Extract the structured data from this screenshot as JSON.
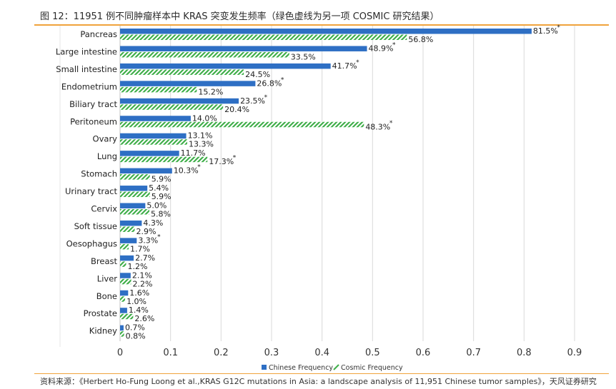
{
  "figure": {
    "title": "图 12：11951 例不同肿瘤样本中 KRAS 突变发生频率（绿色虚线为另一项 COSMIC 研究结果）",
    "source": "资料来源：《Herbert Ho-Fung Loong et al.,KRAS G12C mutations in Asia: a landscape analysis of 11,951 Chinese tumor samples》，天风证券研究"
  },
  "colors": {
    "chinese": "#2e6fc4",
    "cosmic": "#3fae49",
    "grid": "#d9d9d9"
  },
  "chart_data": {
    "type": "bar",
    "orientation": "horizontal",
    "categories": [
      "Pancreas",
      "Large intestine",
      "Small intestine",
      "Endometrium",
      "Biliary tract",
      "Peritoneum",
      "Ovary",
      "Lung",
      "Stomach",
      "Urinary tract",
      "Cervix",
      "Soft tissue",
      "Oesophagus",
      "Breast",
      "Liver",
      "Bone",
      "Prostate",
      "Kidney"
    ],
    "series": [
      {
        "name": "Chinese Frequency",
        "values": [
          0.815,
          0.489,
          0.417,
          0.268,
          0.235,
          0.14,
          0.131,
          0.117,
          0.103,
          0.054,
          0.05,
          0.043,
          0.033,
          0.027,
          0.021,
          0.016,
          0.014,
          0.007
        ],
        "labels": [
          "81.5%",
          "48.9%",
          "41.7%",
          "26.8%",
          "23.5%",
          "14.0%",
          "13.1%",
          "11.7%",
          "10.3%",
          "5.4%",
          "5.0%",
          "4.3%",
          "3.3%",
          "2.7%",
          "2.1%",
          "1.6%",
          "1.4%",
          "0.7%"
        ],
        "significant": [
          true,
          true,
          true,
          true,
          true,
          false,
          false,
          false,
          true,
          false,
          false,
          false,
          true,
          false,
          false,
          false,
          false,
          false
        ]
      },
      {
        "name": "Cosmic Frequency",
        "values": [
          0.568,
          0.335,
          0.245,
          0.152,
          0.204,
          0.483,
          0.133,
          0.173,
          0.059,
          0.059,
          0.058,
          0.029,
          0.017,
          0.012,
          0.022,
          0.01,
          0.026,
          0.008
        ],
        "labels": [
          "56.8%",
          "33.5%",
          "24.5%",
          "15.2%",
          "20.4%",
          "48.3%",
          "13.3%",
          "17.3%",
          "5.9%",
          "5.9%",
          "5.8%",
          "2.9%",
          "1.7%",
          "1.2%",
          "2.2%",
          "1.0%",
          "2.6%",
          "0.8%"
        ],
        "significant": [
          false,
          false,
          false,
          false,
          false,
          true,
          false,
          true,
          false,
          false,
          false,
          false,
          false,
          false,
          false,
          false,
          false,
          false
        ]
      }
    ],
    "significance_marker": "*",
    "xlim": [
      0,
      0.9
    ],
    "xticks": [
      "0",
      "0.1",
      "0.2",
      "0.3",
      "0.4",
      "0.5",
      "0.6",
      "0.7",
      "0.8",
      "0.9"
    ],
    "grid": true,
    "legend": {
      "position": "bottom",
      "items": [
        "Chinese Frequency",
        "Cosmic Frequency"
      ]
    }
  }
}
